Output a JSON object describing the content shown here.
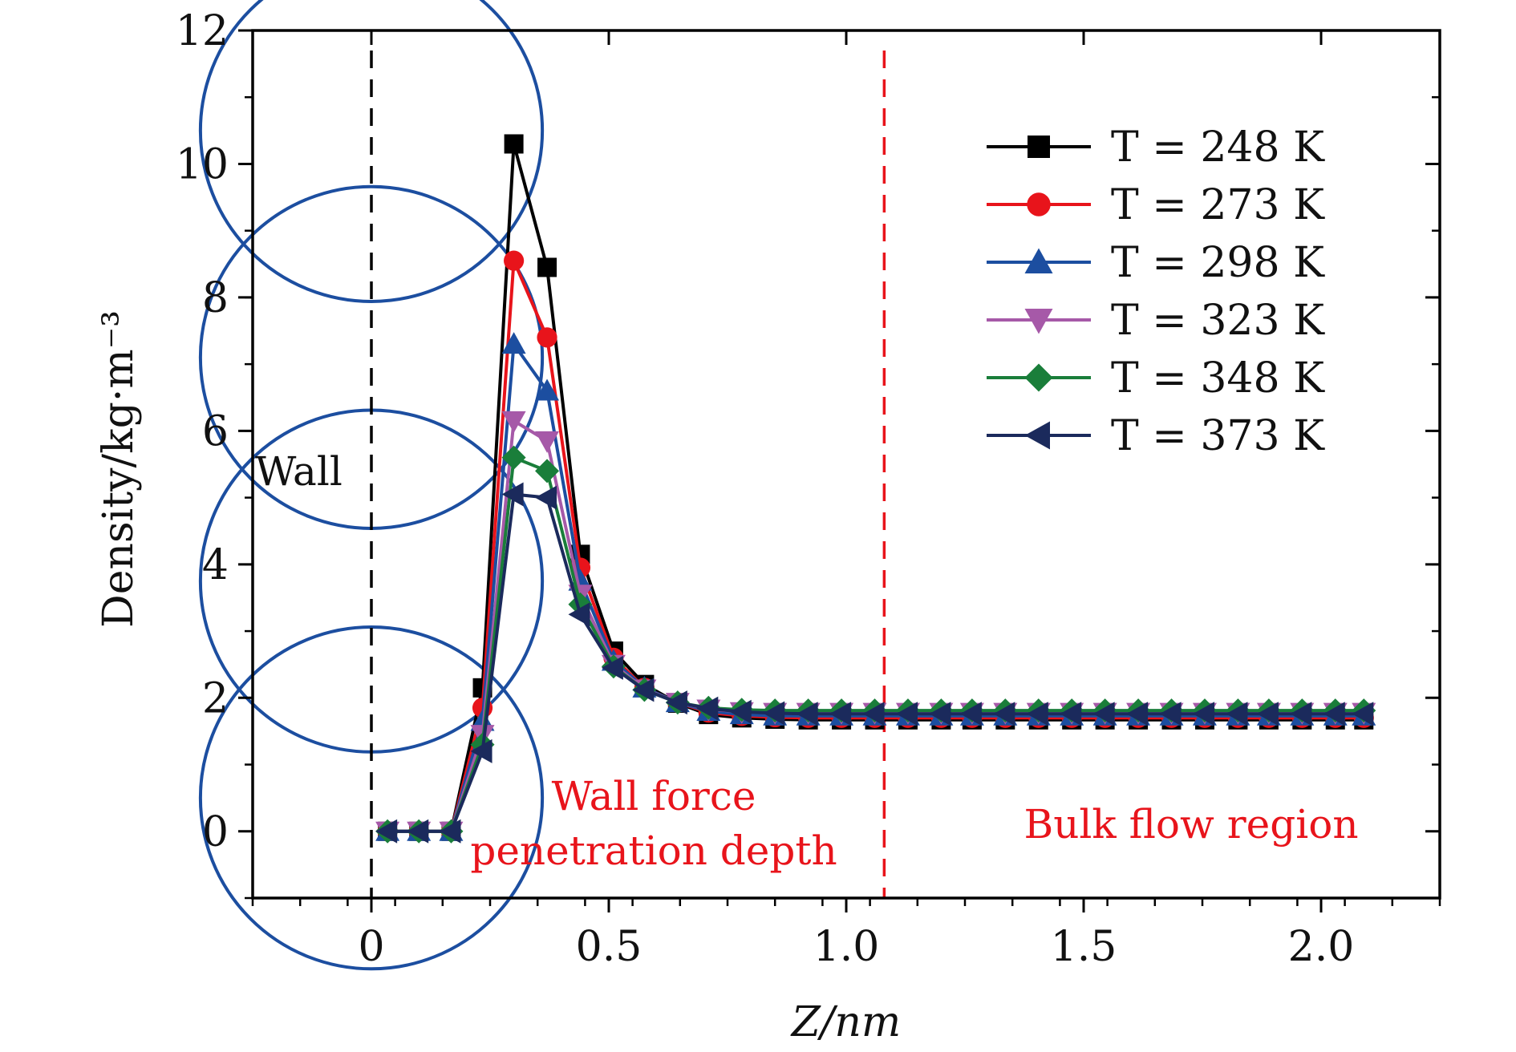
{
  "chart_data": {
    "type": "line",
    "xlabel": "Z/nm",
    "ylabel": "Density/kg·m⁻³",
    "xlim": [
      -0.25,
      2.25
    ],
    "ylim": [
      -1,
      12
    ],
    "xticks": [
      0,
      0.5,
      1.0,
      1.5,
      2.0
    ],
    "xtick_labels": [
      "0",
      "0.5",
      "1.0",
      "1.5",
      "2.0"
    ],
    "yticks": [
      0,
      2,
      4,
      6,
      8,
      10,
      12
    ],
    "ytick_labels": [
      "0",
      "2",
      "4",
      "6",
      "8",
      "10",
      "12"
    ],
    "grid": false,
    "legend_position": "top-right",
    "x": [
      0.034,
      0.1,
      0.168,
      0.234,
      0.3,
      0.37,
      0.44,
      0.51,
      0.575,
      0.645,
      0.71,
      0.78,
      0.85,
      0.92,
      0.99,
      1.06,
      1.13,
      1.2,
      1.265,
      1.335,
      1.405,
      1.475,
      1.545,
      1.615,
      1.685,
      1.755,
      1.825,
      1.89,
      1.96,
      2.03,
      2.09
    ],
    "series": [
      {
        "name": "T = 248 K",
        "color": "#000000",
        "marker": "square",
        "values": [
          0,
          0,
          0,
          2.15,
          10.3,
          8.45,
          4.15,
          2.7,
          2.2,
          1.92,
          1.75,
          1.7,
          1.68,
          1.67,
          1.67,
          1.67,
          1.67,
          1.67,
          1.67,
          1.67,
          1.67,
          1.67,
          1.67,
          1.67,
          1.67,
          1.67,
          1.67,
          1.67,
          1.67,
          1.67,
          1.67
        ]
      },
      {
        "name": "T = 273 K",
        "color": "#e8141b",
        "marker": "circle",
        "values": [
          0,
          0,
          0,
          1.85,
          8.55,
          7.4,
          3.95,
          2.6,
          2.15,
          1.93,
          1.78,
          1.73,
          1.71,
          1.7,
          1.7,
          1.7,
          1.7,
          1.7,
          1.7,
          1.7,
          1.7,
          1.7,
          1.7,
          1.7,
          1.7,
          1.7,
          1.7,
          1.7,
          1.7,
          1.7,
          1.7
        ]
      },
      {
        "name": "T = 298 K",
        "color": "#1c4ea0",
        "marker": "triangle-up",
        "values": [
          0,
          0,
          0,
          1.65,
          7.3,
          6.6,
          3.75,
          2.55,
          2.15,
          1.93,
          1.8,
          1.75,
          1.73,
          1.73,
          1.73,
          1.73,
          1.73,
          1.73,
          1.73,
          1.73,
          1.73,
          1.73,
          1.73,
          1.73,
          1.73,
          1.73,
          1.73,
          1.73,
          1.73,
          1.73,
          1.73
        ]
      },
      {
        "name": "T = 323 K",
        "color": "#a659a8",
        "marker": "triangle-down",
        "values": [
          0,
          0,
          0,
          1.45,
          6.15,
          5.85,
          3.55,
          2.5,
          2.13,
          1.93,
          1.83,
          1.79,
          1.78,
          1.78,
          1.78,
          1.78,
          1.78,
          1.78,
          1.78,
          1.78,
          1.78,
          1.78,
          1.78,
          1.78,
          1.78,
          1.78,
          1.78,
          1.78,
          1.78,
          1.78,
          1.78
        ]
      },
      {
        "name": "T = 348 K",
        "color": "#1a7e3a",
        "marker": "diamond",
        "values": [
          0,
          0,
          0,
          1.3,
          5.6,
          5.4,
          3.4,
          2.47,
          2.12,
          1.93,
          1.85,
          1.82,
          1.81,
          1.81,
          1.81,
          1.81,
          1.81,
          1.81,
          1.81,
          1.81,
          1.81,
          1.81,
          1.81,
          1.81,
          1.81,
          1.81,
          1.81,
          1.81,
          1.81,
          1.81,
          1.81
        ]
      },
      {
        "name": "T = 373 K",
        "color": "#1b2a5c",
        "marker": "triangle-left",
        "values": [
          0,
          0,
          0,
          1.2,
          5.05,
          5.0,
          3.25,
          2.45,
          2.12,
          1.93,
          1.84,
          1.79,
          1.77,
          1.76,
          1.76,
          1.76,
          1.76,
          1.76,
          1.76,
          1.76,
          1.76,
          1.76,
          1.76,
          1.76,
          1.76,
          1.76,
          1.76,
          1.76,
          1.76,
          1.76,
          1.76
        ]
      }
    ],
    "reference_lines": [
      {
        "axis": "x",
        "value": 0,
        "color": "#000000",
        "style": "dashed"
      },
      {
        "axis": "x",
        "value": 1.08,
        "color": "#e8141b",
        "style": "dashed"
      }
    ],
    "annotations": {
      "wall": "Wall",
      "penetration_line1": "Wall force",
      "penetration_line2": "penetration depth",
      "bulk": "Bulk flow region"
    },
    "wall_atoms": {
      "center_x": 0,
      "radius": 0.36,
      "center_y": [
        10.5,
        7.1,
        3.75,
        0.5
      ],
      "color": "#1c4ea0"
    }
  }
}
